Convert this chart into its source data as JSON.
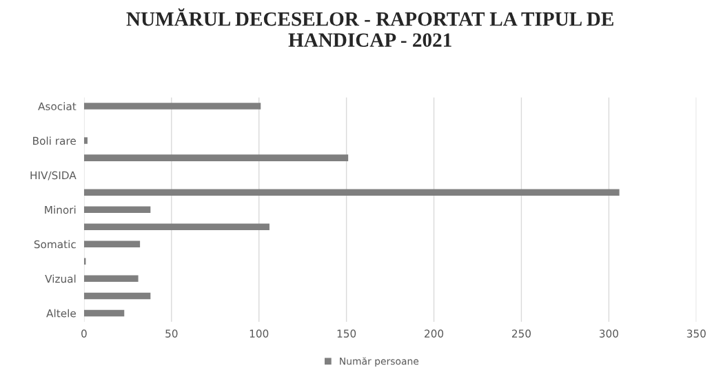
{
  "chart_data": {
    "type": "bar",
    "orientation": "horizontal",
    "title": "NUMĂRUL DECESELOR - RAPORTAT LA TIPUL DE HANDICAP - 2021",
    "categories": [
      "Asociat",
      null,
      "Boli rare",
      null,
      "HIV/SIDA",
      null,
      "Minori",
      null,
      "Somatic",
      null,
      "Vizual",
      null,
      "Altele"
    ],
    "series": [
      {
        "name": "Număr persoane",
        "color": "#7f7f7f",
        "values": [
          101,
          0,
          2,
          151,
          0,
          306,
          38,
          106,
          32,
          1,
          31,
          38,
          23
        ]
      }
    ],
    "xlim": [
      0,
      350
    ],
    "xticks": [
      0,
      50,
      100,
      150,
      200,
      250,
      300,
      350
    ],
    "grid": "x",
    "legend": "bottom"
  }
}
